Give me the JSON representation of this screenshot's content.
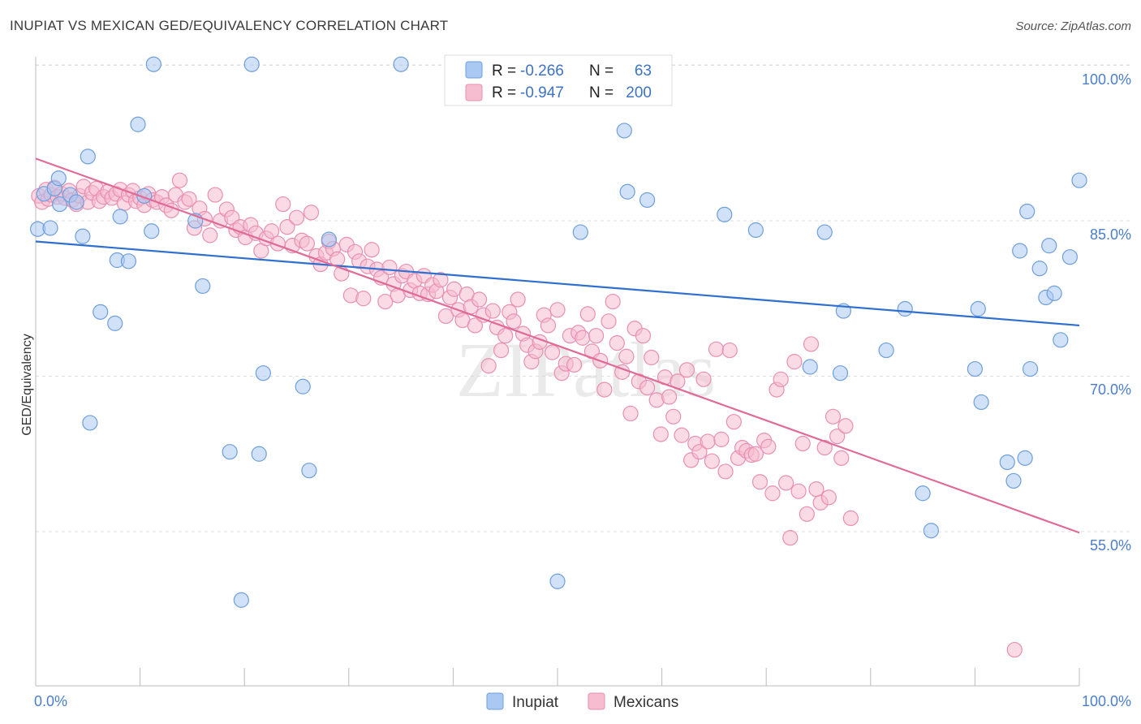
{
  "title": "INUPIAT VS MEXICAN GED/EQUIVALENCY CORRELATION CHART",
  "source": "Source: ZipAtlas.com",
  "watermark": "ZIPatlas",
  "colors": {
    "inupiat_fill": "#a9c9f2",
    "inupiat_stroke": "#6e9fdc",
    "inupiat_line": "#2f6fd0",
    "mexican_fill": "#f6bcd0",
    "mexican_stroke": "#e98fb0",
    "mexican_line": "#e06a98",
    "tick_label": "#4a7ec9",
    "grid": "#dddddd"
  },
  "legend_top": {
    "rows": [
      {
        "r_label": "R =",
        "r_value": "-0.266",
        "n_label": "N =",
        "n_value": "63"
      },
      {
        "r_label": "R =",
        "r_value": "-0.947",
        "n_label": "N =",
        "n_value": "200"
      }
    ]
  },
  "legend_bottom": [
    "Inupiat",
    "Mexicans"
  ],
  "chart_data": {
    "type": "scatter",
    "xlabel": "",
    "ylabel": "GED/Equivalency",
    "xlim": [
      0,
      100
    ],
    "ylim": [
      43,
      101.5
    ],
    "x_tick_labels": [
      "0.0%",
      "100.0%"
    ],
    "y_ticks": [
      55,
      70,
      85,
      100
    ],
    "y_tick_labels": [
      "55.0%",
      "70.0%",
      "85.0%",
      "100.0%"
    ],
    "grid": "horizontal dashed",
    "legend_position": "top-center",
    "series": [
      {
        "name": "Inupiat",
        "trend": {
          "x": [
            0,
            100
          ],
          "y": [
            83.0,
            74.9
          ]
        },
        "points": [
          [
            0.2,
            84.2
          ],
          [
            1.4,
            84.3
          ],
          [
            0.8,
            87.6
          ],
          [
            1.8,
            88.1
          ],
          [
            2.3,
            86.6
          ],
          [
            3.3,
            87.5
          ],
          [
            2.2,
            89.1
          ],
          [
            3.9,
            86.8
          ],
          [
            4.5,
            83.5
          ],
          [
            5.0,
            91.2
          ],
          [
            6.2,
            76.2
          ],
          [
            7.8,
            81.2
          ],
          [
            7.6,
            75.1
          ],
          [
            8.1,
            85.4
          ],
          [
            8.9,
            81.1
          ],
          [
            9.8,
            94.3
          ],
          [
            10.4,
            87.4
          ],
          [
            11.1,
            84.0
          ],
          [
            11.3,
            100.1
          ],
          [
            5.2,
            65.5
          ],
          [
            15.3,
            85.0
          ],
          [
            16.0,
            78.7
          ],
          [
            18.6,
            62.7
          ],
          [
            19.7,
            48.4
          ],
          [
            20.7,
            100.1
          ],
          [
            21.4,
            62.5
          ],
          [
            21.8,
            70.3
          ],
          [
            25.6,
            69.0
          ],
          [
            26.2,
            60.9
          ],
          [
            28.1,
            83.2
          ],
          [
            35.0,
            100.1
          ],
          [
            50.0,
            50.2
          ],
          [
            52.2,
            83.9
          ],
          [
            53.2,
            100.1
          ],
          [
            56.4,
            93.7
          ],
          [
            56.7,
            87.8
          ],
          [
            58.6,
            87.0
          ],
          [
            66.0,
            85.6
          ],
          [
            69.0,
            84.1
          ],
          [
            74.2,
            70.9
          ],
          [
            75.6,
            83.9
          ],
          [
            77.1,
            70.3
          ],
          [
            77.4,
            76.3
          ],
          [
            81.5,
            72.5
          ],
          [
            83.3,
            76.5
          ],
          [
            85.0,
            58.7
          ],
          [
            85.8,
            55.1
          ],
          [
            90.0,
            70.7
          ],
          [
            90.3,
            76.5
          ],
          [
            90.6,
            67.5
          ],
          [
            93.1,
            61.7
          ],
          [
            94.3,
            82.1
          ],
          [
            94.8,
            62.1
          ],
          [
            95.0,
            85.9
          ],
          [
            95.3,
            70.7
          ],
          [
            96.2,
            80.4
          ],
          [
            96.8,
            77.6
          ],
          [
            97.1,
            82.6
          ],
          [
            97.6,
            78.0
          ],
          [
            98.2,
            73.5
          ],
          [
            99.1,
            81.5
          ],
          [
            100.0,
            88.9
          ],
          [
            93.7,
            59.9
          ]
        ]
      },
      {
        "name": "Mexicans",
        "trend": {
          "x": [
            0,
            100
          ],
          "y": [
            91.0,
            54.9
          ]
        },
        "points": [
          [
            0.3,
            87.4
          ],
          [
            0.6,
            86.8
          ],
          [
            1.0,
            88.0
          ],
          [
            1.2,
            87.1
          ],
          [
            1.5,
            87.5
          ],
          [
            1.8,
            88.2
          ],
          [
            2.1,
            87.3
          ],
          [
            2.5,
            87.6
          ],
          [
            2.8,
            87.2
          ],
          [
            3.2,
            87.9
          ],
          [
            3.5,
            87.0
          ],
          [
            3.9,
            86.6
          ],
          [
            4.2,
            87.4
          ],
          [
            4.6,
            88.3
          ],
          [
            5.0,
            86.8
          ],
          [
            5.4,
            87.7
          ],
          [
            5.8,
            88.1
          ],
          [
            6.1,
            86.9
          ],
          [
            6.5,
            87.3
          ],
          [
            6.9,
            87.8
          ],
          [
            7.3,
            87.2
          ],
          [
            7.7,
            87.6
          ],
          [
            8.1,
            88.0
          ],
          [
            8.5,
            86.7
          ],
          [
            8.9,
            87.5
          ],
          [
            9.3,
            87.9
          ],
          [
            9.6,
            86.9
          ],
          [
            10.0,
            87.2
          ],
          [
            10.4,
            86.5
          ],
          [
            10.8,
            87.6
          ],
          [
            11.2,
            87.0
          ],
          [
            11.6,
            86.8
          ],
          [
            12.1,
            87.3
          ],
          [
            12.5,
            86.5
          ],
          [
            13.0,
            86.0
          ],
          [
            13.4,
            87.5
          ],
          [
            13.8,
            88.9
          ],
          [
            14.3,
            86.8
          ],
          [
            14.7,
            87.1
          ],
          [
            15.2,
            84.3
          ],
          [
            15.7,
            86.2
          ],
          [
            16.2,
            85.2
          ],
          [
            16.7,
            83.6
          ],
          [
            17.2,
            87.5
          ],
          [
            17.7,
            85.0
          ],
          [
            18.3,
            86.1
          ],
          [
            18.8,
            85.3
          ],
          [
            19.2,
            84.1
          ],
          [
            19.6,
            84.4
          ],
          [
            20.1,
            83.4
          ],
          [
            20.6,
            84.6
          ],
          [
            21.1,
            83.8
          ],
          [
            21.6,
            82.1
          ],
          [
            22.1,
            83.3
          ],
          [
            22.6,
            84.0
          ],
          [
            23.2,
            82.8
          ],
          [
            23.7,
            86.6
          ],
          [
            24.1,
            84.4
          ],
          [
            24.6,
            82.6
          ],
          [
            25.0,
            85.3
          ],
          [
            25.5,
            83.1
          ],
          [
            26.0,
            82.8
          ],
          [
            26.4,
            85.8
          ],
          [
            26.9,
            81.6
          ],
          [
            27.3,
            80.8
          ],
          [
            27.8,
            81.9
          ],
          [
            28.1,
            83.0
          ],
          [
            28.5,
            82.3
          ],
          [
            28.9,
            81.3
          ],
          [
            29.3,
            79.9
          ],
          [
            29.8,
            82.7
          ],
          [
            30.2,
            77.8
          ],
          [
            30.6,
            82.0
          ],
          [
            31.0,
            81.1
          ],
          [
            31.4,
            77.5
          ],
          [
            31.8,
            80.6
          ],
          [
            32.2,
            82.2
          ],
          [
            32.7,
            80.3
          ],
          [
            33.1,
            79.5
          ],
          [
            33.5,
            77.2
          ],
          [
            33.9,
            80.5
          ],
          [
            34.3,
            78.9
          ],
          [
            34.7,
            77.8
          ],
          [
            35.1,
            79.7
          ],
          [
            35.5,
            80.1
          ],
          [
            35.9,
            78.3
          ],
          [
            36.3,
            79.2
          ],
          [
            36.8,
            78.0
          ],
          [
            37.2,
            79.7
          ],
          [
            37.6,
            77.9
          ],
          [
            38.0,
            78.8
          ],
          [
            38.4,
            78.2
          ],
          [
            38.8,
            79.3
          ],
          [
            39.3,
            75.8
          ],
          [
            39.7,
            77.6
          ],
          [
            40.1,
            78.4
          ],
          [
            40.5,
            76.4
          ],
          [
            40.9,
            75.4
          ],
          [
            41.3,
            77.9
          ],
          [
            41.7,
            76.7
          ],
          [
            42.1,
            74.9
          ],
          [
            42.5,
            77.4
          ],
          [
            42.9,
            75.9
          ],
          [
            43.4,
            71.0
          ],
          [
            43.8,
            76.3
          ],
          [
            44.2,
            74.7
          ],
          [
            44.6,
            72.5
          ],
          [
            45.0,
            73.9
          ],
          [
            45.4,
            76.2
          ],
          [
            45.8,
            75.3
          ],
          [
            46.2,
            77.4
          ],
          [
            46.7,
            74.1
          ],
          [
            47.1,
            73.0
          ],
          [
            47.5,
            71.4
          ],
          [
            47.9,
            72.4
          ],
          [
            48.3,
            73.3
          ],
          [
            48.7,
            75.9
          ],
          [
            49.1,
            74.9
          ],
          [
            49.5,
            72.3
          ],
          [
            50.0,
            76.4
          ],
          [
            50.4,
            70.3
          ],
          [
            50.8,
            71.2
          ],
          [
            51.2,
            73.9
          ],
          [
            51.6,
            71.1
          ],
          [
            52.0,
            74.2
          ],
          [
            52.4,
            73.7
          ],
          [
            52.9,
            76.0
          ],
          [
            53.3,
            72.4
          ],
          [
            53.7,
            73.9
          ],
          [
            54.1,
            71.5
          ],
          [
            54.5,
            68.7
          ],
          [
            54.9,
            75.3
          ],
          [
            55.3,
            77.2
          ],
          [
            55.7,
            73.2
          ],
          [
            56.2,
            70.4
          ],
          [
            56.6,
            71.9
          ],
          [
            57.0,
            66.4
          ],
          [
            57.4,
            74.6
          ],
          [
            57.8,
            69.5
          ],
          [
            58.2,
            73.9
          ],
          [
            58.6,
            68.9
          ],
          [
            59.0,
            71.8
          ],
          [
            59.5,
            67.7
          ],
          [
            59.9,
            64.4
          ],
          [
            60.3,
            69.9
          ],
          [
            60.7,
            68.0
          ],
          [
            61.1,
            66.1
          ],
          [
            61.5,
            69.5
          ],
          [
            61.9,
            64.3
          ],
          [
            62.4,
            70.6
          ],
          [
            62.8,
            61.9
          ],
          [
            63.2,
            63.5
          ],
          [
            63.6,
            62.7
          ],
          [
            64.0,
            69.7
          ],
          [
            64.4,
            63.7
          ],
          [
            64.8,
            61.8
          ],
          [
            65.2,
            72.6
          ],
          [
            65.7,
            63.9
          ],
          [
            66.1,
            60.8
          ],
          [
            66.5,
            72.5
          ],
          [
            66.9,
            65.6
          ],
          [
            67.3,
            62.1
          ],
          [
            67.7,
            63.1
          ],
          [
            68.1,
            62.8
          ],
          [
            68.6,
            62.4
          ],
          [
            69.0,
            62.5
          ],
          [
            69.4,
            59.8
          ],
          [
            69.8,
            63.8
          ],
          [
            70.2,
            63.2
          ],
          [
            70.6,
            58.7
          ],
          [
            71.0,
            68.7
          ],
          [
            71.4,
            69.7
          ],
          [
            71.9,
            59.7
          ],
          [
            72.3,
            54.4
          ],
          [
            72.7,
            71.4
          ],
          [
            73.1,
            58.9
          ],
          [
            73.5,
            63.5
          ],
          [
            73.9,
            56.7
          ],
          [
            74.3,
            73.1
          ],
          [
            74.8,
            59.1
          ],
          [
            75.2,
            57.8
          ],
          [
            75.6,
            63.1
          ],
          [
            76.0,
            58.3
          ],
          [
            76.4,
            66.1
          ],
          [
            76.8,
            64.2
          ],
          [
            77.2,
            62.1
          ],
          [
            77.6,
            65.2
          ],
          [
            78.1,
            56.3
          ],
          [
            93.8,
            43.6
          ]
        ]
      }
    ]
  }
}
